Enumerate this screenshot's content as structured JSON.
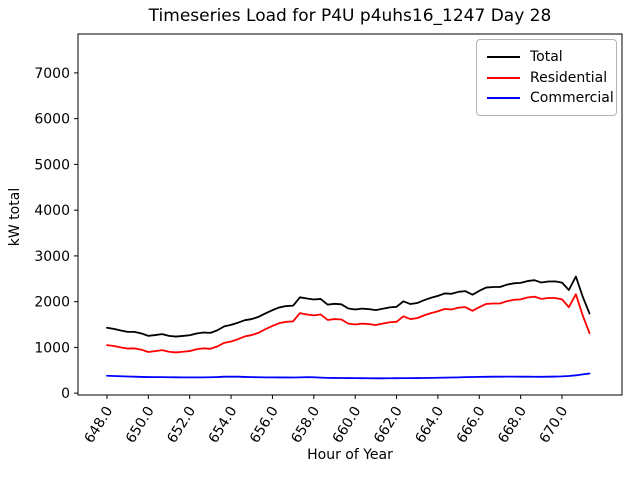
{
  "title": "Timeseries Load for P4U p4uhs16_1247  Day 28",
  "xlabel": "Hour of Year",
  "ylabel": "kW total",
  "legend": [
    {
      "label": "Total",
      "color": "#000000"
    },
    {
      "label": "Residential",
      "color": "#ff0000"
    },
    {
      "label": "Commercial",
      "color": "#0000ff"
    }
  ],
  "chart_data": {
    "type": "line",
    "title": "Timeseries Load for P4U p4uhs16_1247  Day 28",
    "xlabel": "Hour of Year",
    "ylabel": "kW total",
    "grid": false,
    "legend_position": "upper right",
    "xlim": [
      646.6,
      672.9
    ],
    "ylim": [
      -40,
      7850
    ],
    "xticks": [
      648,
      650,
      652,
      654,
      656,
      658,
      660,
      662,
      664,
      666,
      668,
      670
    ],
    "xtick_labels": [
      "648.0",
      "650.0",
      "652.0",
      "654.0",
      "656.0",
      "658.0",
      "660.0",
      "662.0",
      "664.0",
      "666.0",
      "668.0",
      "670.0"
    ],
    "yticks": [
      0,
      1000,
      2000,
      3000,
      4000,
      5000,
      6000,
      7000
    ],
    "ytick_labels": [
      "0",
      "1000",
      "2000",
      "3000",
      "4000",
      "5000",
      "6000",
      "7000"
    ],
    "x": [
      648,
      648.33,
      648.67,
      649,
      649.33,
      649.67,
      650,
      650.33,
      650.67,
      651,
      651.33,
      651.67,
      652,
      652.33,
      652.67,
      653,
      653.33,
      653.67,
      654,
      654.33,
      654.67,
      655,
      655.33,
      655.67,
      656,
      656.33,
      656.67,
      657,
      657.33,
      657.67,
      658,
      658.33,
      658.67,
      659,
      659.33,
      659.67,
      660,
      660.33,
      660.67,
      661,
      661.33,
      661.67,
      662,
      662.33,
      662.67,
      663,
      663.33,
      663.67,
      664,
      664.33,
      664.67,
      665,
      665.33,
      665.67,
      666,
      666.33,
      666.67,
      667,
      667.33,
      667.67,
      668,
      668.33,
      668.67,
      669,
      669.33,
      669.67,
      670,
      670.33,
      670.67,
      671,
      671.33
    ],
    "series": [
      {
        "name": "Total",
        "color": "#000000",
        "values": [
          1430,
          1405,
          1370,
          1340,
          1340,
          1305,
          1252,
          1270,
          1290,
          1253,
          1237,
          1251,
          1265,
          1305,
          1326,
          1318,
          1372,
          1460,
          1492,
          1540,
          1595,
          1620,
          1668,
          1746,
          1815,
          1874,
          1904,
          1913,
          2095,
          2070,
          2048,
          2060,
          1935,
          1953,
          1942,
          1850,
          1828,
          1847,
          1836,
          1815,
          1845,
          1876,
          1887,
          2008,
          1948,
          1970,
          2032,
          2085,
          2127,
          2180,
          2172,
          2215,
          2230,
          2153,
          2236,
          2308,
          2320,
          2320,
          2371,
          2401,
          2410,
          2450,
          2469,
          2418,
          2440,
          2443,
          2417,
          2255,
          2550,
          2110,
          1740
        ]
      },
      {
        "name": "Residential",
        "color": "#ff0000",
        "values": [
          1050,
          1030,
          1000,
          975,
          980,
          950,
          900,
          920,
          940,
          905,
          890,
          905,
          920,
          960,
          980,
          970,
          1020,
          1100,
          1130,
          1180,
          1240,
          1270,
          1320,
          1400,
          1470,
          1530,
          1560,
          1570,
          1750,
          1720,
          1700,
          1720,
          1600,
          1620,
          1610,
          1520,
          1500,
          1520,
          1510,
          1490,
          1520,
          1550,
          1560,
          1680,
          1620,
          1640,
          1700,
          1750,
          1790,
          1840,
          1830,
          1870,
          1880,
          1800,
          1880,
          1950,
          1960,
          1960,
          2010,
          2040,
          2050,
          2090,
          2110,
          2060,
          2080,
          2080,
          2050,
          1880,
          2160,
          1700,
          1310
        ]
      },
      {
        "name": "Commercial",
        "color": "#0000ff",
        "values": [
          380,
          375,
          370,
          365,
          360,
          355,
          352,
          350,
          350,
          348,
          347,
          346,
          345,
          345,
          346,
          348,
          352,
          360,
          362,
          360,
          355,
          350,
          348,
          346,
          345,
          344,
          344,
          343,
          345,
          350,
          348,
          340,
          335,
          333,
          332,
          330,
          328,
          327,
          326,
          325,
          325,
          326,
          327,
          328,
          328,
          330,
          332,
          335,
          337,
          340,
          342,
          345,
          350,
          353,
          356,
          358,
          360,
          360,
          361,
          361,
          360,
          360,
          359,
          358,
          360,
          363,
          367,
          375,
          390,
          410,
          430
        ]
      }
    ]
  }
}
